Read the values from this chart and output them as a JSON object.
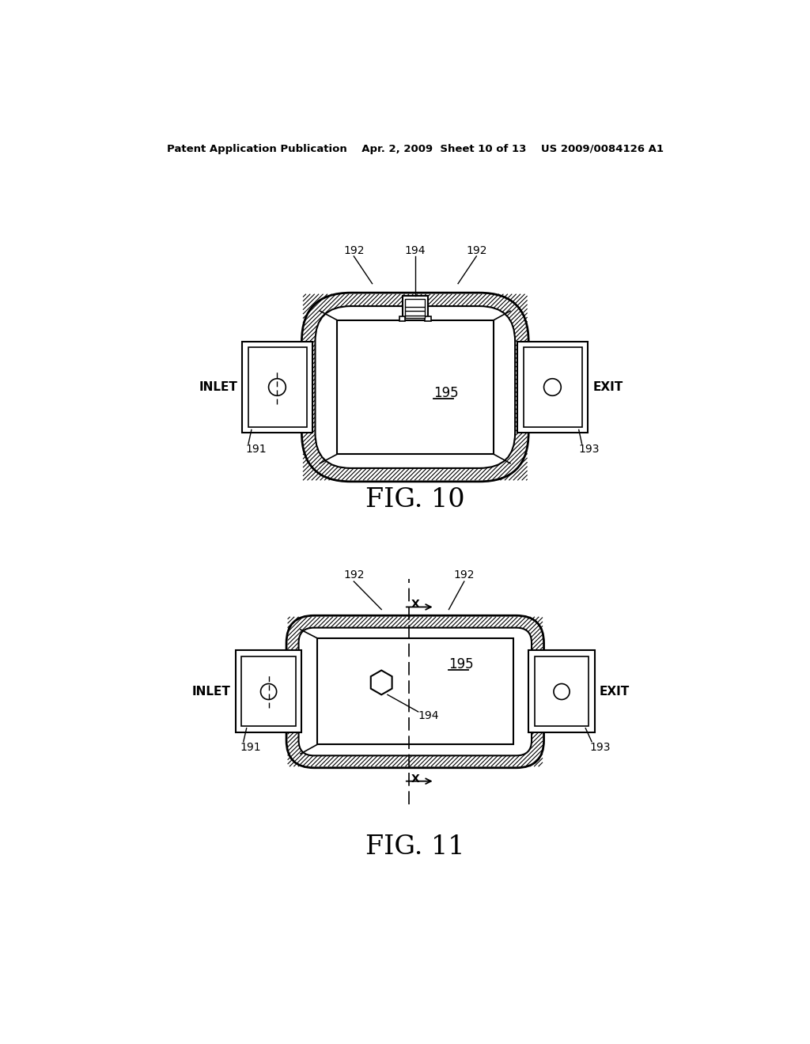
{
  "bg_color": "#ffffff",
  "line_color": "#000000",
  "header_text": "Patent Application Publication    Apr. 2, 2009  Sheet 10 of 13    US 2009/0084126 A1",
  "fig10_caption": "FIG. 10",
  "fig11_caption": "FIG. 11"
}
